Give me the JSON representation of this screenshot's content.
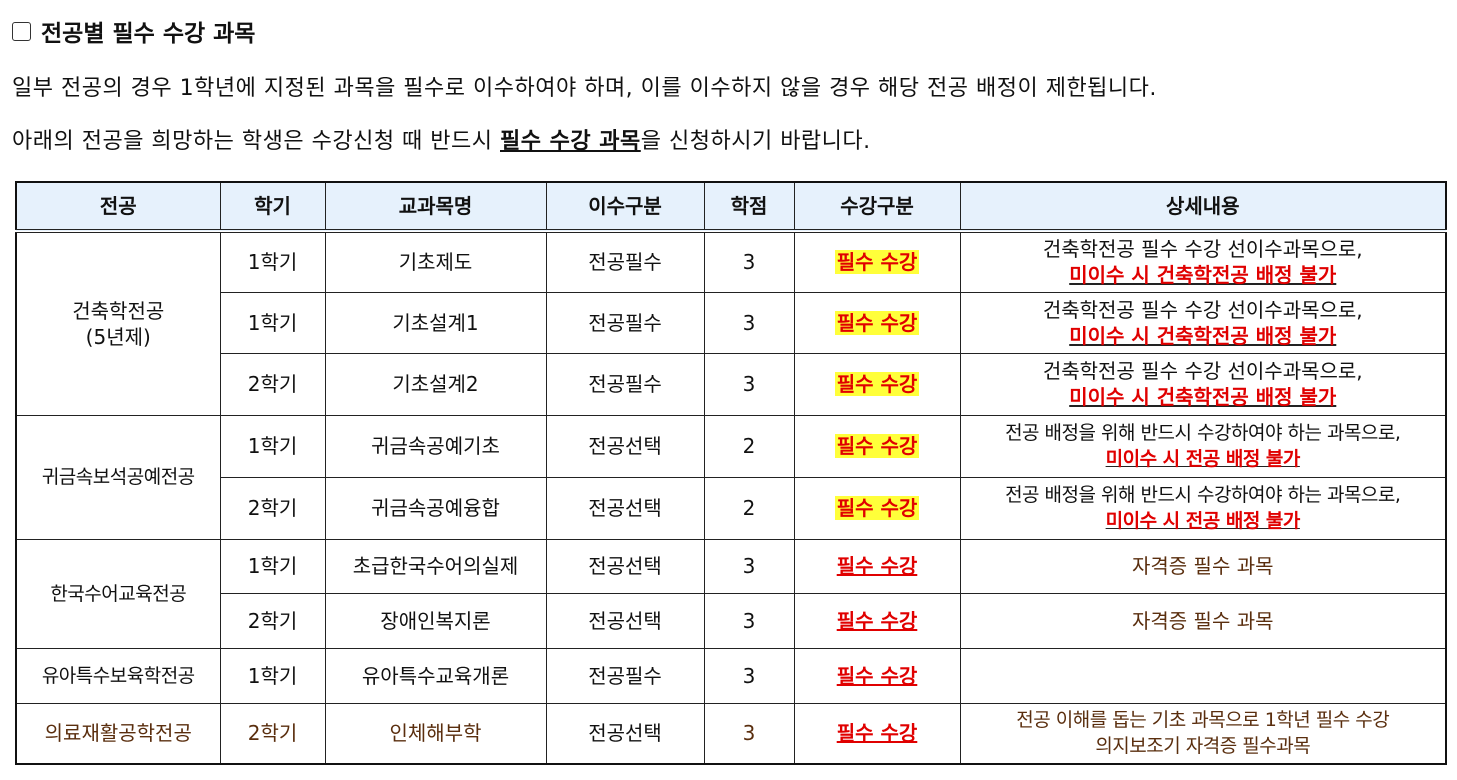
{
  "heading": "전공별 필수 수강 과목",
  "intro_line1": "일부 전공의 경우 1학년에 지정된 과목을 필수로 이수하여야 하며, 이를 이수하지 않을 경우 해당 전공 배정이 제한됩니다.",
  "intro_line2_before": "아래의 전공을 희망하는 학생은 수강신청 때 반드시 ",
  "intro_line2_bold": "필수 수강 과목",
  "intro_line2_after": "을 신청하시기 바랍니다.",
  "columns": [
    "전공",
    "학기",
    "교과목명",
    "이수구분",
    "학점",
    "수강구분",
    "상세내용"
  ],
  "majors": [
    "건축학전공\n(5년제)",
    "귀금속보석공예전공",
    "한국수어교육전공",
    "유아특수보육학전공",
    "의료재활공학전공"
  ],
  "rows": [
    {
      "semester": "1학기",
      "course": "기초제도",
      "type": "전공필수",
      "credit": "3",
      "req": "필수 수강",
      "detail1": "건축학전공 필수 수강 선이수과목으로,",
      "detail2": "미이수 시 건축학전공 배정 불가"
    },
    {
      "semester": "1학기",
      "course": "기초설계1",
      "type": "전공필수",
      "credit": "3",
      "req": "필수 수강",
      "detail1": "건축학전공 필수 수강 선이수과목으로,",
      "detail2": "미이수 시 건축학전공 배정 불가"
    },
    {
      "semester": "2학기",
      "course": "기초설계2",
      "type": "전공필수",
      "credit": "3",
      "req": "필수 수강",
      "detail1": "건축학전공 필수 수강 선이수과목으로,",
      "detail2": "미이수 시 건축학전공 배정 불가"
    },
    {
      "semester": "1학기",
      "course": "귀금속공예기초",
      "type": "전공선택",
      "credit": "2",
      "req": "필수 수강",
      "detail1": "전공 배정을 위해 반드시 수강하여야 하는 과목으로,",
      "detail2": "미이수 시 전공 배정 불가"
    },
    {
      "semester": "2학기",
      "course": "귀금속공예융합",
      "type": "전공선택",
      "credit": "2",
      "req": "필수 수강",
      "detail1": "전공 배정을 위해 반드시 수강하여야 하는 과목으로,",
      "detail2": "미이수 시 전공 배정 불가"
    },
    {
      "semester": "1학기",
      "course": "초급한국수어의실제",
      "type": "전공선택",
      "credit": "3",
      "req": "필수 수강",
      "detail1": "자격증 필수 과목"
    },
    {
      "semester": "2학기",
      "course": "장애인복지론",
      "type": "전공선택",
      "credit": "3",
      "req": "필수 수강",
      "detail1": "자격증 필수 과목"
    },
    {
      "semester": "1학기",
      "course": "유아특수교육개론",
      "type": "전공필수",
      "credit": "3",
      "req": "필수 수강",
      "detail1": ""
    },
    {
      "semester": "2학기",
      "course": "인체해부학",
      "type": "전공선택",
      "credit": "3",
      "req": "필수 수강",
      "detail1": "전공 이해를 돕는 기초 과목으로 1학년 필수 수강",
      "detail2": "의지보조기 자격증 필수과목"
    }
  ],
  "colors": {
    "header_bg": "#e6f1fc",
    "highlight": "#ffff3a",
    "red": "#e00000",
    "brown": "#5a2e0e"
  }
}
